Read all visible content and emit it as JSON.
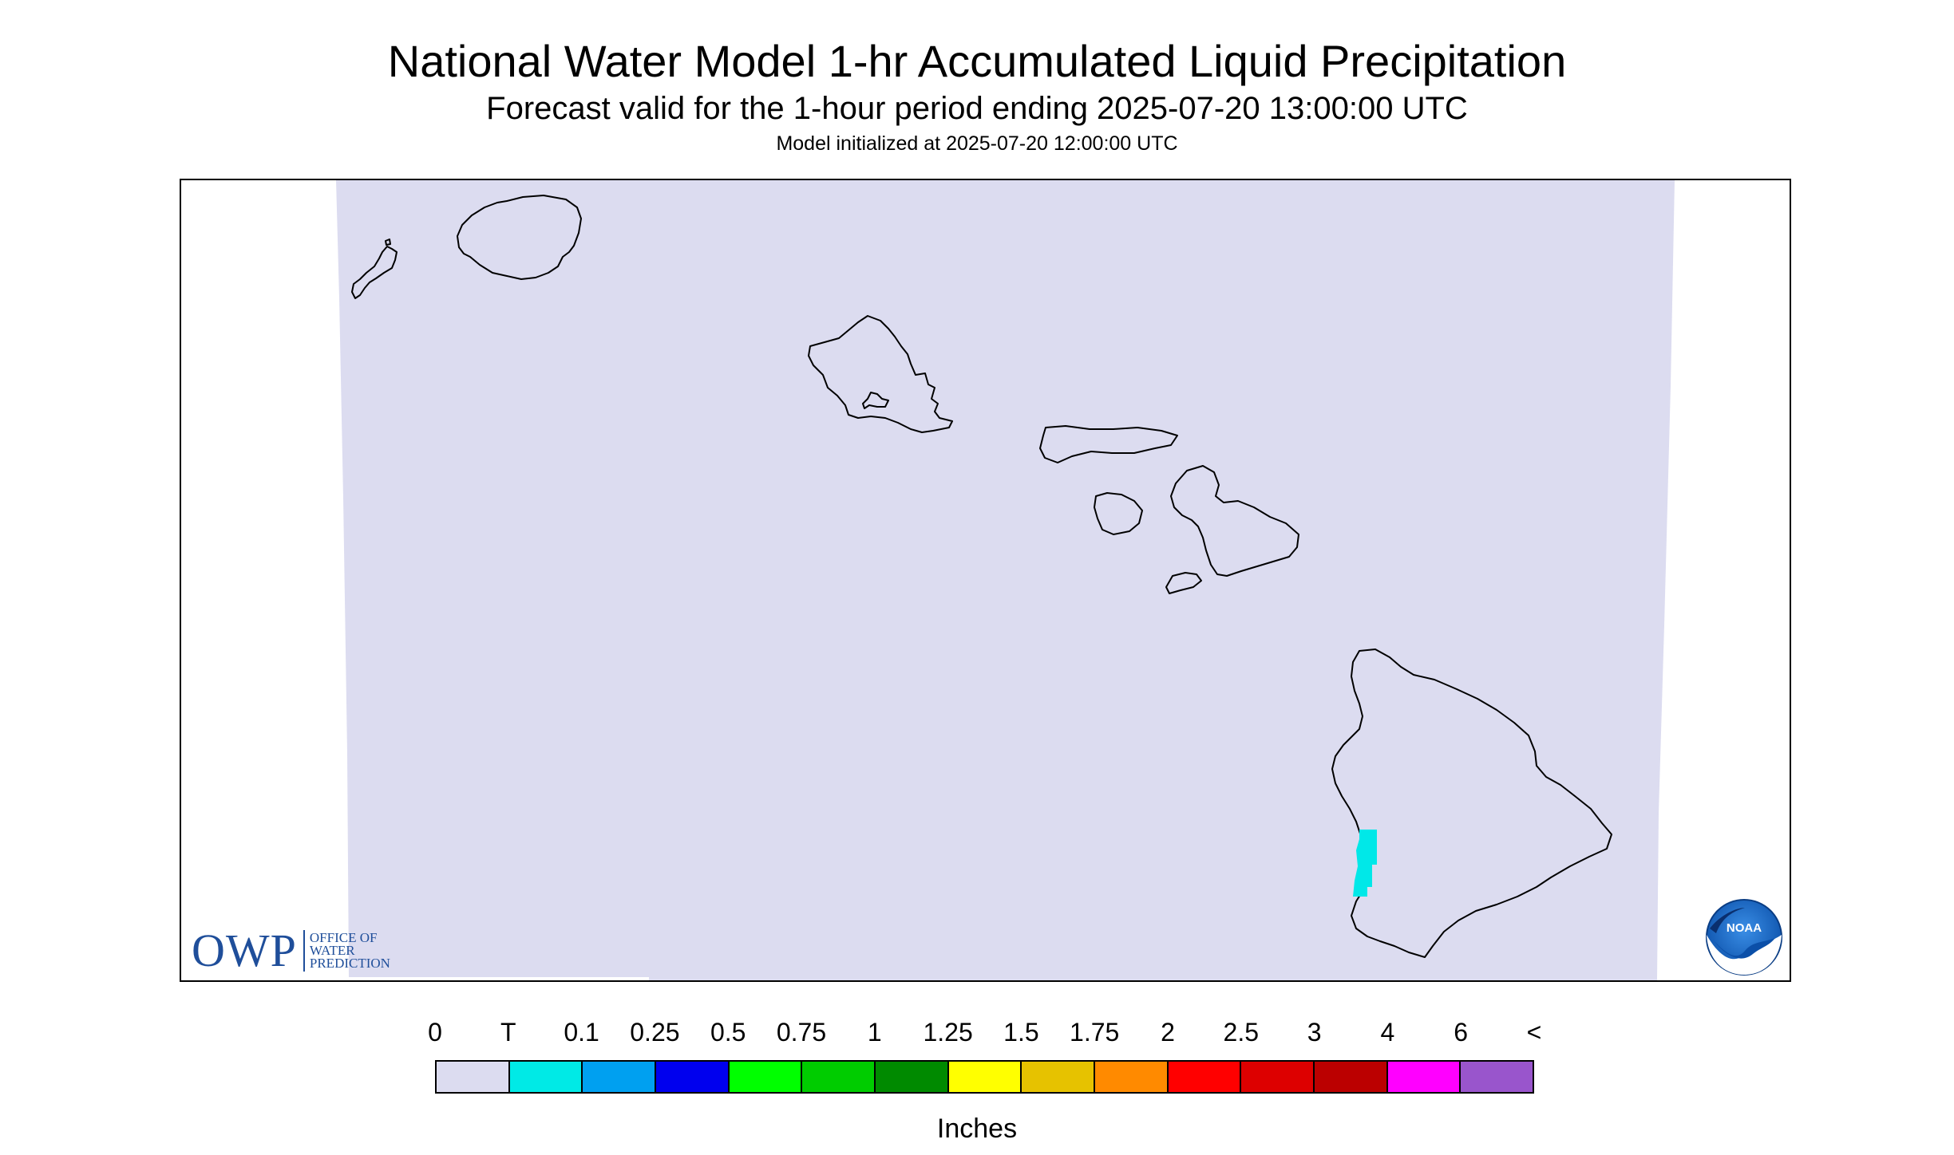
{
  "header": {
    "title": "National Water Model 1-hr Accumulated Liquid Precipitation",
    "subtitle": "Forecast valid for the 1-hour period ending 2025-07-20 13:00:00 UTC",
    "init_line": "Model initialized at 2025-07-20 12:00:00 UTC"
  },
  "map": {
    "region": "Hawaii",
    "domain_fill_color": "#dcdcf0",
    "outline_color": "#000000",
    "precip_cell_color": "#00e8e8",
    "icons": [
      "owp-logo",
      "noaa-logo"
    ]
  },
  "owp_logo": {
    "mark": "OWP",
    "lines": [
      "OFFICE OF",
      "WATER",
      "PREDICTION"
    ],
    "color": "#1f4e9a"
  },
  "noaa_logo": {
    "text": "NOAA"
  },
  "legend": {
    "ticks": [
      "0",
      "T",
      "0.1",
      "0.25",
      "0.5",
      "0.75",
      "1",
      "1.25",
      "1.5",
      "1.75",
      "2",
      "2.5",
      "3",
      "4",
      "6",
      "<"
    ],
    "colors": [
      "#dcdcf0",
      "#00eae6",
      "#00a0f0",
      "#0000ee",
      "#00ff00",
      "#00cc00",
      "#008a00",
      "#ffff00",
      "#e6c200",
      "#ff8a00",
      "#ff0000",
      "#dd0000",
      "#bb0000",
      "#ff00ff",
      "#9955cc"
    ],
    "units": "Inches"
  }
}
